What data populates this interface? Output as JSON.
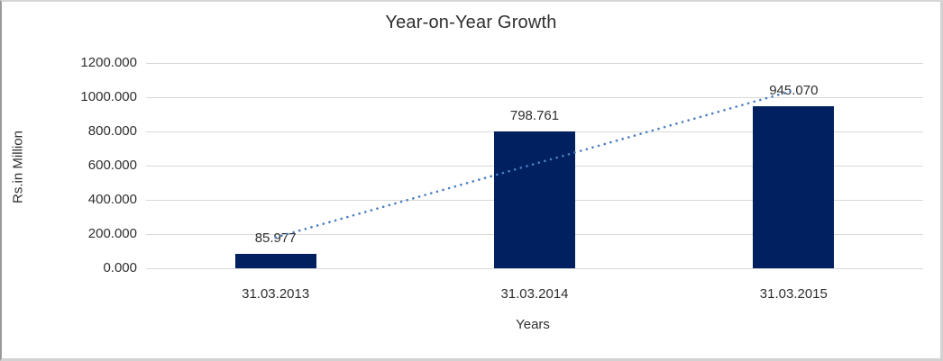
{
  "chart_data": {
    "type": "bar",
    "title": "Year-on-Year Growth",
    "xlabel": "Years",
    "ylabel": "Rs.in Million",
    "categories": [
      "31.03.2013",
      "31.03.2014",
      "31.03.2015"
    ],
    "values": [
      85.977,
      798.761,
      945.07
    ],
    "value_labels": [
      "85.977",
      "798.761",
      "945.070"
    ],
    "ytick_labels": [
      "1200.000",
      "1000.000",
      "800.000",
      "600.000",
      "400.000",
      "200.000",
      "0.000"
    ],
    "ylim": [
      0,
      1200
    ],
    "grid": true,
    "legend": false,
    "bar_color": "#002060",
    "gridline_color": "#d9d9d9",
    "text_color": "#2f2f2f",
    "trendline": {
      "type": "linear",
      "style": "dotted",
      "color": "#4a7ec0"
    }
  }
}
